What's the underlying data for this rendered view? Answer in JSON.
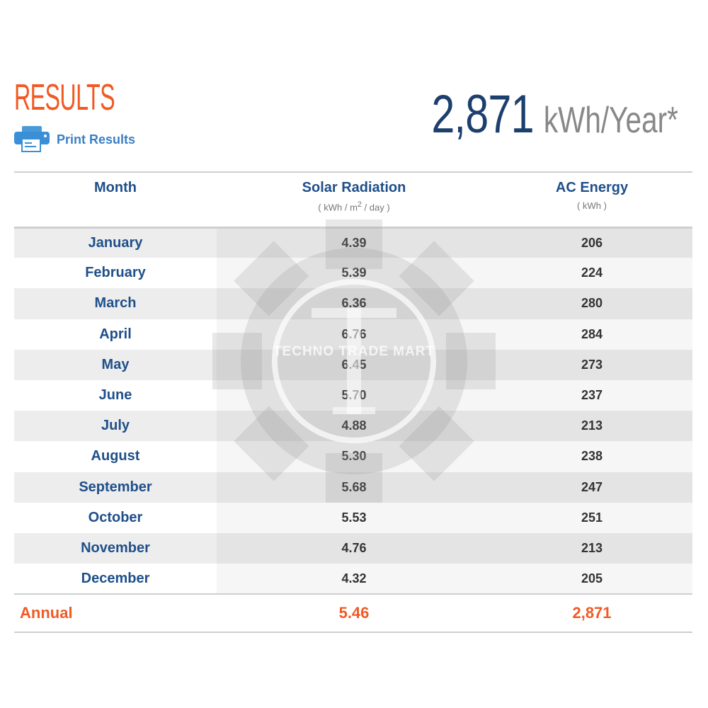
{
  "results": {
    "title": "RESULTS",
    "print_label": "Print Results",
    "total_value": "2,871",
    "total_unit": "kWh/Year*"
  },
  "table": {
    "headers": {
      "month": "Month",
      "solar": "Solar Radiation",
      "solar_unit_pre": "( kWh / m",
      "solar_unit_sup": "2",
      "solar_unit_post": " / day )",
      "ac": "AC Energy",
      "ac_unit": "( kWh )"
    },
    "rows": [
      {
        "month": "January",
        "solar": "4.39",
        "ac": "206"
      },
      {
        "month": "February",
        "solar": "5.39",
        "ac": "224"
      },
      {
        "month": "March",
        "solar": "6.36",
        "ac": "280"
      },
      {
        "month": "April",
        "solar": "6.76",
        "ac": "284"
      },
      {
        "month": "May",
        "solar": "6.45",
        "ac": "273"
      },
      {
        "month": "June",
        "solar": "5.70",
        "ac": "237"
      },
      {
        "month": "July",
        "solar": "4.88",
        "ac": "213"
      },
      {
        "month": "August",
        "solar": "5.30",
        "ac": "238"
      },
      {
        "month": "September",
        "solar": "5.68",
        "ac": "247"
      },
      {
        "month": "October",
        "solar": "5.53",
        "ac": "251"
      },
      {
        "month": "November",
        "solar": "4.76",
        "ac": "213"
      },
      {
        "month": "December",
        "solar": "4.32",
        "ac": "205"
      }
    ],
    "annual": {
      "label": "Annual",
      "solar": "5.46",
      "ac": "2,871"
    }
  },
  "watermark": {
    "text": "TECHNO TRADE MART",
    "letter": "T"
  },
  "colors": {
    "accent": "#f15a24",
    "header_blue": "#1f4f8a",
    "total_blue": "#1d3f6e",
    "link_blue": "#3a7fc4"
  }
}
